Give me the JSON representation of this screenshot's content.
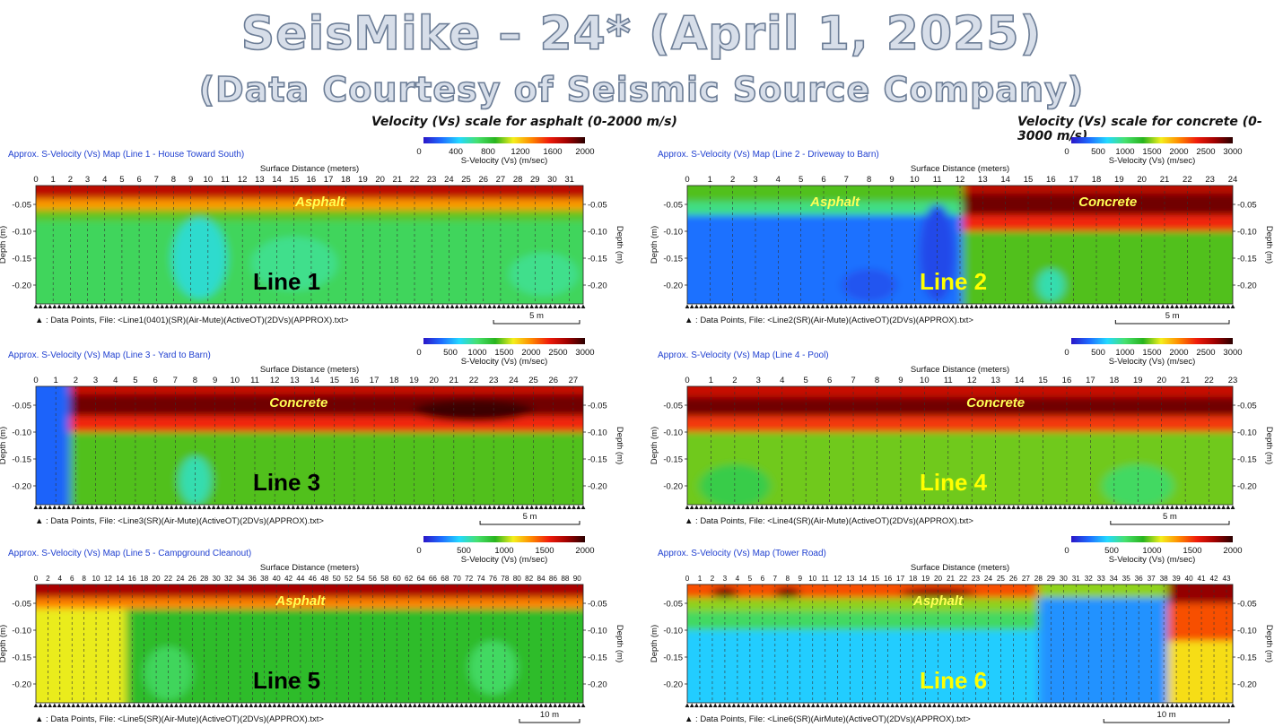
{
  "header": {
    "title": "SeisMike – 24* (April 1, 2025)",
    "subtitle": "(Data Courtesy of Seismic Source Company)",
    "asphalt_scale_note": "Velocity (Vs) scale for asphalt (0-2000 m/s)",
    "concrete_scale_note": "Velocity (Vs) scale for concrete (0-3000 m/s)"
  },
  "colors": {
    "panel_title": "#1f3fd0",
    "line_label_black": "#000000",
    "line_label_yellow": "#ffff00",
    "material_label": "#ffff55",
    "colormap": [
      "#2a16c8",
      "#1e6cff",
      "#23d9ff",
      "#46e06e",
      "#28b41e",
      "#f4ef1d",
      "#ff8a00",
      "#ef1b0a",
      "#a00000",
      "#2a0000"
    ]
  },
  "common": {
    "xaxis_title": "Surface Distance (meters)",
    "yaxis_title": "Depth (m)",
    "colorbar_label_asphalt": "S-Velocity (Vs) (m/sec)",
    "colorbar_label_concrete": "S-Velocity (Vs) (m/sec)"
  },
  "chart_data": [
    {
      "type": "heatmap",
      "title": "Approx. S-Velocity (Vs) Map (Line 1 - House Toward South)",
      "line_label": "Line 1",
      "line_label_color": "black",
      "material_labels": [
        {
          "text": "Asphalt",
          "x": 16.5,
          "depth": -0.045
        }
      ],
      "xlabel": "Surface Distance (meters)",
      "ylabel": "Depth (m)",
      "xlim": [
        0,
        31.8
      ],
      "ylim": [
        -0.235,
        -0.015
      ],
      "xticks": [
        0,
        1,
        2,
        3,
        4,
        5,
        6,
        7,
        8,
        9,
        10,
        11,
        12,
        13,
        14,
        15,
        16,
        17,
        18,
        19,
        20,
        21,
        22,
        23,
        24,
        25,
        26,
        27,
        28,
        29,
        30,
        31
      ],
      "yticks": [
        -0.05,
        -0.1,
        -0.15,
        -0.2
      ],
      "ytick_labels": [
        "-0.05",
        "-0.10",
        "-0.15",
        "-0.20"
      ],
      "colorbar": {
        "label": "S-Velocity (Vs) (m/sec)",
        "ticks": [
          0,
          400,
          800,
          1200,
          1600,
          2000
        ],
        "range": [
          0,
          2000
        ]
      },
      "layers": [
        {
          "top": -0.015,
          "bottom": -0.04,
          "vs": 1700
        },
        {
          "top": -0.04,
          "bottom": -0.06,
          "vs": 1300
        },
        {
          "top": -0.06,
          "bottom": -0.08,
          "vs": 950
        },
        {
          "top": -0.08,
          "bottom": -0.235,
          "vs": 720
        }
      ],
      "anomalies": [
        {
          "x": 9.5,
          "depth": -0.15,
          "rx": 1.6,
          "ry": 0.075,
          "vs": 520
        },
        {
          "x": 15,
          "depth": -0.16,
          "rx": 2.5,
          "ry": 0.05,
          "vs": 620
        },
        {
          "x": 29.5,
          "depth": -0.18,
          "rx": 2,
          "ry": 0.04,
          "vs": 620
        }
      ],
      "footer": "▲ : Data Points,  File: <Line1(0401)(SR)(Air-Mute)(ActiveOT)(2DVs)(APPROX).txt>",
      "scalebar_label": "5 m",
      "scalebar_length_m": 5
    },
    {
      "type": "heatmap",
      "title": "Approx. S-Velocity (Vs) Map (Line 2 - Driveway to Barn)",
      "line_label": "Line 2",
      "line_label_color": "yellow",
      "material_labels": [
        {
          "text": "Asphalt",
          "x": 6.5,
          "depth": -0.045
        },
        {
          "text": "Concrete",
          "x": 18.5,
          "depth": -0.045
        }
      ],
      "xlabel": "Surface Distance (meters)",
      "ylabel": "Depth (m)",
      "xlim": [
        0,
        24
      ],
      "ylim": [
        -0.235,
        -0.015
      ],
      "xticks": [
        0,
        1,
        2,
        3,
        4,
        5,
        6,
        7,
        8,
        9,
        10,
        11,
        12,
        13,
        14,
        15,
        16,
        17,
        18,
        19,
        20,
        21,
        22,
        23,
        24
      ],
      "yticks": [
        -0.05,
        -0.1,
        -0.15,
        -0.2
      ],
      "ytick_labels": [
        "-0.05",
        "-0.10",
        "-0.15",
        "-0.20"
      ],
      "colorbar": {
        "label": "S-Velocity (Vs) (m/sec)",
        "ticks": [
          0,
          500,
          1000,
          1500,
          2000,
          2500,
          3000
        ],
        "range": [
          0,
          3000
        ]
      },
      "regions": [
        {
          "x0": 0,
          "x1": 12.1,
          "layers": [
            {
              "top": -0.015,
              "bottom": -0.045,
              "vs": 1400
            },
            {
              "top": -0.045,
              "bottom": -0.07,
              "vs": 950
            },
            {
              "top": -0.07,
              "bottom": -0.235,
              "vs": 350
            }
          ]
        },
        {
          "x0": 12.1,
          "x1": 24,
          "layers": [
            {
              "top": -0.015,
              "bottom": -0.03,
              "vs": 2550
            },
            {
              "top": -0.03,
              "bottom": -0.07,
              "vs": 2800
            },
            {
              "top": -0.07,
              "bottom": -0.1,
              "vs": 2300
            },
            {
              "top": -0.1,
              "bottom": -0.235,
              "vs": 1400
            }
          ]
        }
      ],
      "anomalies": [
        {
          "x": 11,
          "depth": -0.14,
          "rx": 0.8,
          "ry": 0.09,
          "vs": 200
        },
        {
          "x": 16,
          "depth": -0.2,
          "rx": 0.6,
          "ry": 0.03,
          "vs": 850
        },
        {
          "x": 8,
          "depth": -0.2,
          "rx": 1.2,
          "ry": 0.03,
          "vs": 240
        }
      ],
      "footer": "▲ : Data Points,  File: <Line2(SR)(Air-Mute)(ActiveOT)(2DVs)(APPROX).txt>",
      "scalebar_label": "5 m",
      "scalebar_length_m": 5
    },
    {
      "type": "heatmap",
      "title": "Approx. S-Velocity (Vs) Map (Line 3 - Yard to Barn)",
      "line_label": "Line 3",
      "line_label_color": "black",
      "material_labels": [
        {
          "text": "Concrete",
          "x": 13.2,
          "depth": -0.045
        }
      ],
      "xlabel": "Surface Distance (meters)",
      "ylabel": "Depth (m)",
      "xlim": [
        0,
        27.5
      ],
      "ylim": [
        -0.235,
        -0.015
      ],
      "xticks": [
        0,
        1,
        2,
        3,
        4,
        5,
        6,
        7,
        8,
        9,
        10,
        11,
        12,
        13,
        14,
        15,
        16,
        17,
        18,
        19,
        20,
        21,
        22,
        23,
        24,
        25,
        26,
        27
      ],
      "yticks": [
        -0.05,
        -0.1,
        -0.15,
        -0.2
      ],
      "ytick_labels": [
        "-0.05",
        "-0.10",
        "-0.15",
        "-0.20"
      ],
      "colorbar": {
        "label": "S-Velocity (Vs) (m/sec)",
        "ticks": [
          0,
          500,
          1000,
          1500,
          2000,
          2500,
          3000
        ],
        "range": [
          0,
          3000
        ]
      },
      "regions": [
        {
          "x0": 0,
          "x1": 1.7,
          "layers": [
            {
              "top": -0.015,
              "bottom": -0.235,
              "vs": 300
            }
          ]
        },
        {
          "x0": 1.7,
          "x1": 27.5,
          "layers": [
            {
              "top": -0.015,
              "bottom": -0.03,
              "vs": 2500
            },
            {
              "top": -0.03,
              "bottom": -0.07,
              "vs": 2800
            },
            {
              "top": -0.07,
              "bottom": -0.1,
              "vs": 2300
            },
            {
              "top": -0.1,
              "bottom": -0.235,
              "vs": 1400
            }
          ]
        }
      ],
      "anomalies": [
        {
          "x": 8,
          "depth": -0.19,
          "rx": 0.8,
          "ry": 0.045,
          "vs": 850
        },
        {
          "x": 22,
          "depth": -0.06,
          "rx": 3,
          "ry": 0.02,
          "vs": 2950
        }
      ],
      "footer": "▲ : Data Points,  File: <Line3(SR)(Air-Mute)(ActiveOT)(2DVs)(APPROX).txt>",
      "scalebar_label": "5 m",
      "scalebar_length_m": 5
    },
    {
      "type": "heatmap",
      "title": "Approx. S-Velocity (Vs) Map (Line 4 - Pool)",
      "line_label": "Line 4",
      "line_label_color": "yellow",
      "material_labels": [
        {
          "text": "Concrete",
          "x": 13,
          "depth": -0.045
        }
      ],
      "xlabel": "Surface Distance (meters)",
      "ylabel": "Depth (m)",
      "xlim": [
        0,
        23
      ],
      "ylim": [
        -0.235,
        -0.015
      ],
      "xticks": [
        0,
        1,
        2,
        3,
        4,
        5,
        6,
        7,
        8,
        9,
        10,
        11,
        12,
        13,
        14,
        15,
        16,
        17,
        18,
        19,
        20,
        21,
        22,
        23
      ],
      "yticks": [
        -0.05,
        -0.1,
        -0.15,
        -0.2
      ],
      "ytick_labels": [
        "-0.05",
        "-0.10",
        "-0.15",
        "-0.20"
      ],
      "colorbar": {
        "label": "S-Velocity (Vs) (m/sec)",
        "ticks": [
          0,
          500,
          1000,
          1500,
          2000,
          2500,
          3000
        ],
        "range": [
          0,
          3000
        ]
      },
      "layers": [
        {
          "top": -0.015,
          "bottom": -0.035,
          "vs": 2500
        },
        {
          "top": -0.035,
          "bottom": -0.07,
          "vs": 2800
        },
        {
          "top": -0.07,
          "bottom": -0.1,
          "vs": 2250
        },
        {
          "top": -0.1,
          "bottom": -0.235,
          "vs": 1450
        }
      ],
      "anomalies": [
        {
          "x": 19,
          "depth": -0.2,
          "rx": 1.5,
          "ry": 0.04,
          "vs": 1050
        },
        {
          "x": 2,
          "depth": -0.2,
          "rx": 1.5,
          "ry": 0.04,
          "vs": 1150
        }
      ],
      "footer": "▲ : Data Points,  File: <Line4(SR)(Air-Mute)(ActiveOT)(2DVs)(APPROX).txt>",
      "scalebar_label": "5 m",
      "scalebar_length_m": 5
    },
    {
      "type": "heatmap",
      "title": "Approx. S-Velocity (Vs) Map (Line 5 - Campground Cleanout)",
      "line_label": "Line 5",
      "line_label_color": "black",
      "material_labels": [
        {
          "text": "Asphalt",
          "x": 44,
          "depth": -0.045
        }
      ],
      "xlabel": "Surface Distance (meters)",
      "ylabel": "Depth (m)",
      "xlim": [
        0,
        91
      ],
      "ylim": [
        -0.235,
        -0.015
      ],
      "xticks": [
        0,
        2,
        4,
        6,
        8,
        10,
        12,
        14,
        16,
        18,
        20,
        22,
        24,
        26,
        28,
        30,
        32,
        34,
        36,
        38,
        40,
        42,
        44,
        46,
        48,
        50,
        52,
        54,
        56,
        58,
        60,
        62,
        64,
        66,
        68,
        70,
        72,
        74,
        76,
        78,
        80,
        82,
        84,
        86,
        88,
        90
      ],
      "yticks": [
        -0.05,
        -0.1,
        -0.15,
        -0.2
      ],
      "ytick_labels": [
        "-0.05",
        "-0.10",
        "-0.15",
        "-0.20"
      ],
      "colorbar": {
        "label": "S-Velocity (Vs) (m/sec)",
        "ticks": [
          0,
          500,
          1000,
          1500,
          2000
        ],
        "range": [
          0,
          2000
        ]
      },
      "layers": [
        {
          "top": -0.015,
          "bottom": -0.04,
          "vs": 1750
        },
        {
          "top": -0.04,
          "bottom": -0.06,
          "vs": 1350
        },
        {
          "top": -0.06,
          "bottom": -0.235,
          "vs": 850
        }
      ],
      "regions": [
        {
          "x0": 0,
          "x1": 15,
          "layers": [
            {
              "top": -0.06,
              "bottom": -0.235,
              "vs": 1100
            }
          ]
        }
      ],
      "anomalies": [
        {
          "x": 76,
          "depth": -0.17,
          "rx": 4,
          "ry": 0.05,
          "vs": 700
        },
        {
          "x": 22,
          "depth": -0.18,
          "rx": 4,
          "ry": 0.05,
          "vs": 720
        }
      ],
      "footer": "▲ : Data Points,  File: <Line5(SR)(Air-Mute)(ActiveOT)(2DVs)(APPROX).txt>",
      "scalebar_label": "10 m",
      "scalebar_length_m": 10
    },
    {
      "type": "heatmap",
      "title": "Approx. S-Velocity (Vs) Map (Tower Road)",
      "line_label": "Line 6",
      "line_label_color": "yellow",
      "material_labels": [
        {
          "text": "Asphalt",
          "x": 20,
          "depth": -0.045
        }
      ],
      "xlabel": "Surface Distance (meters)",
      "ylabel": "Depth (m)",
      "xlim": [
        0,
        43.5
      ],
      "ylim": [
        -0.235,
        -0.015
      ],
      "xticks": [
        0,
        1,
        2,
        3,
        4,
        5,
        6,
        7,
        8,
        9,
        10,
        11,
        12,
        13,
        14,
        15,
        16,
        17,
        18,
        19,
        20,
        21,
        22,
        23,
        24,
        25,
        26,
        27,
        28,
        29,
        30,
        31,
        32,
        33,
        34,
        35,
        36,
        37,
        38,
        39,
        40,
        41,
        42,
        43
      ],
      "yticks": [
        -0.05,
        -0.1,
        -0.15,
        -0.2
      ],
      "ytick_labels": [
        "-0.05",
        "-0.10",
        "-0.15",
        "-0.20"
      ],
      "colorbar": {
        "label": "S-Velocity (Vs) (m/sec)",
        "ticks": [
          0,
          500,
          1000,
          1500,
          2000
        ],
        "range": [
          0,
          2000
        ]
      },
      "regions": [
        {
          "x0": 0,
          "x1": 28,
          "layers": [
            {
              "top": -0.015,
              "bottom": -0.04,
              "vs": 1450
            },
            {
              "top": -0.04,
              "bottom": -0.065,
              "vs": 1000
            },
            {
              "top": -0.065,
              "bottom": -0.1,
              "vs": 700
            },
            {
              "top": -0.1,
              "bottom": -0.235,
              "vs": 420
            }
          ]
        },
        {
          "x0": 28,
          "x1": 38.3,
          "layers": [
            {
              "top": -0.015,
              "bottom": -0.04,
              "vs": 1000
            },
            {
              "top": -0.04,
              "bottom": -0.235,
              "vs": 300
            }
          ]
        },
        {
          "x0": 38.3,
          "x1": 43.5,
          "layers": [
            {
              "top": -0.015,
              "bottom": -0.05,
              "vs": 1800
            },
            {
              "top": -0.05,
              "bottom": -0.12,
              "vs": 1450
            },
            {
              "top": -0.12,
              "bottom": -0.235,
              "vs": 1150
            }
          ]
        }
      ],
      "anomalies": [
        {
          "x": 3,
          "depth": -0.03,
          "rx": 1,
          "ry": 0.01,
          "vs": 1850
        },
        {
          "x": 8,
          "depth": -0.03,
          "rx": 1,
          "ry": 0.01,
          "vs": 1850
        },
        {
          "x": 20,
          "depth": -0.03,
          "rx": 3,
          "ry": 0.01,
          "vs": 1800
        }
      ],
      "footer": "▲ : Data Points,  File: <Line6(SR)(AirMute)(ActiveOT)(2DVs)(APPROX).txt>",
      "scalebar_label": "10 m",
      "scalebar_length_m": 10
    }
  ]
}
